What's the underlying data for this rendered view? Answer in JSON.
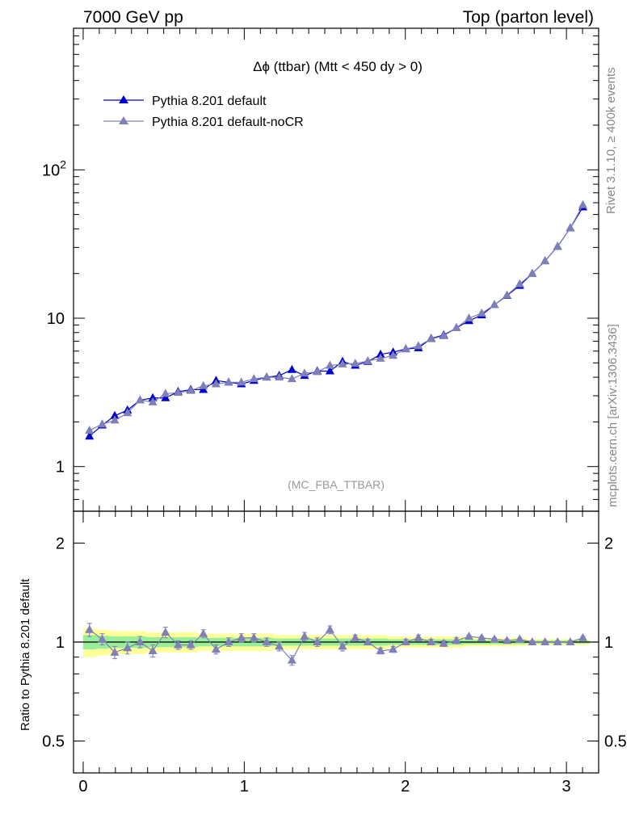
{
  "header": {
    "left": "7000 GeV pp",
    "right": "Top (parton level)"
  },
  "side_labels": {
    "rivet": "Rivet 3.1.10, ≥ 400k events",
    "mcplots": "mcplots.cern.ch [arXiv:1306.3436]"
  },
  "chart_data": {
    "type": "line",
    "title": "Δϕ (ttbar) (Mtt < 450 dy > 0)",
    "watermark": "(MC_FBA_TTBAR)",
    "xlim": [
      -0.06,
      3.2
    ],
    "x_ticks": [
      0,
      1,
      2,
      3
    ],
    "x_tick_labels": [
      "0",
      "1",
      "2",
      "3"
    ],
    "yscale": "log",
    "ylim": [
      0.5,
      900
    ],
    "y_ticks": [
      1,
      10,
      100
    ],
    "y_tick_labels": [
      "1",
      "10",
      "10^2"
    ],
    "ratio_ylabel": "Ratio to Pythia 8.201 default",
    "ratio_ylim": [
      0.4,
      2.5
    ],
    "ratio_y_ticks": [
      0.5,
      1,
      2
    ],
    "ratio_y_tick_labels": [
      "0.5",
      "1",
      "2"
    ],
    "x": [
      0.039,
      0.118,
      0.196,
      0.275,
      0.353,
      0.432,
      0.511,
      0.589,
      0.668,
      0.746,
      0.825,
      0.903,
      0.982,
      1.06,
      1.139,
      1.217,
      1.296,
      1.374,
      1.453,
      1.532,
      1.61,
      1.689,
      1.767,
      1.846,
      1.924,
      2.003,
      2.081,
      2.16,
      2.238,
      2.317,
      2.395,
      2.474,
      2.553,
      2.631,
      2.71,
      2.788,
      2.867,
      2.945,
      3.024,
      3.102
    ],
    "series": [
      {
        "name": "Pythia 8.201 default",
        "color": "#0000cc",
        "marker": "triangle",
        "values": [
          1.6,
          1.9,
          2.2,
          2.4,
          2.8,
          2.9,
          2.9,
          3.2,
          3.3,
          3.3,
          3.8,
          3.7,
          3.6,
          3.8,
          4.0,
          4.1,
          4.5,
          4.1,
          4.4,
          4.4,
          5.1,
          4.8,
          5.1,
          5.7,
          5.9,
          6.2,
          6.3,
          7.3,
          7.7,
          8.6,
          9.6,
          10.5,
          12.3,
          14.2,
          16.6,
          20.0,
          24.3,
          30.4,
          40.5,
          56.0
        ]
      },
      {
        "name": "Pythia 8.201 default-noCR",
        "color": "#8080b8",
        "marker": "triangle",
        "values": [
          1.75,
          1.93,
          2.05,
          2.3,
          2.8,
          2.72,
          3.1,
          3.15,
          3.25,
          3.5,
          3.6,
          3.7,
          3.7,
          3.9,
          4.0,
          4.0,
          3.9,
          4.25,
          4.35,
          4.8,
          4.9,
          4.95,
          5.15,
          5.35,
          5.6,
          6.2,
          6.5,
          7.25,
          7.6,
          8.6,
          10.0,
          10.8,
          12.3,
          14.3,
          17.0,
          20.0,
          24.3,
          30.4,
          40.5,
          58.0
        ],
        "ratio": [
          1.09,
          1.02,
          0.93,
          0.96,
          1.0,
          0.94,
          1.07,
          0.98,
          0.98,
          1.06,
          0.95,
          1.0,
          1.03,
          1.03,
          1.0,
          0.97,
          0.88,
          1.04,
          1.0,
          1.09,
          0.97,
          1.03,
          1.0,
          0.94,
          0.95,
          1.0,
          1.03,
          1.0,
          0.99,
          1.01,
          1.04,
          1.03,
          1.02,
          1.01,
          1.02,
          1.0,
          1.0,
          1.0,
          1.0,
          1.03
        ],
        "ratio_err": [
          0.05,
          0.04,
          0.04,
          0.04,
          0.04,
          0.04,
          0.04,
          0.03,
          0.03,
          0.03,
          0.03,
          0.03,
          0.03,
          0.03,
          0.03,
          0.03,
          0.03,
          0.03,
          0.03,
          0.03,
          0.03,
          0.02,
          0.02,
          0.02,
          0.02,
          0.02,
          0.02,
          0.02,
          0.02,
          0.02,
          0.01,
          0.01,
          0.01,
          0.01,
          0.01,
          0.01,
          0.01,
          0.01,
          0.01,
          0.01
        ]
      }
    ],
    "ratio_bands": {
      "yellow_halfwidth": [
        0.1,
        0.09,
        0.08,
        0.08,
        0.08,
        0.07,
        0.07,
        0.07,
        0.07,
        0.06,
        0.06,
        0.06,
        0.06,
        0.06,
        0.06,
        0.05,
        0.05,
        0.05,
        0.05,
        0.05,
        0.05,
        0.05,
        0.05,
        0.05,
        0.04,
        0.04,
        0.04,
        0.04,
        0.04,
        0.04,
        0.03,
        0.03,
        0.03,
        0.03,
        0.03,
        0.02,
        0.02,
        0.02,
        0.02,
        0.02
      ],
      "green_halfwidth": [
        0.05,
        0.045,
        0.04,
        0.04,
        0.04,
        0.035,
        0.035,
        0.035,
        0.035,
        0.03,
        0.03,
        0.03,
        0.03,
        0.03,
        0.03,
        0.025,
        0.025,
        0.025,
        0.025,
        0.025,
        0.025,
        0.025,
        0.025,
        0.025,
        0.02,
        0.02,
        0.02,
        0.02,
        0.02,
        0.02,
        0.015,
        0.015,
        0.015,
        0.015,
        0.015,
        0.01,
        0.01,
        0.01,
        0.01,
        0.01
      ],
      "yellow_color": "#ffff99",
      "green_color": "#99ee99"
    }
  }
}
